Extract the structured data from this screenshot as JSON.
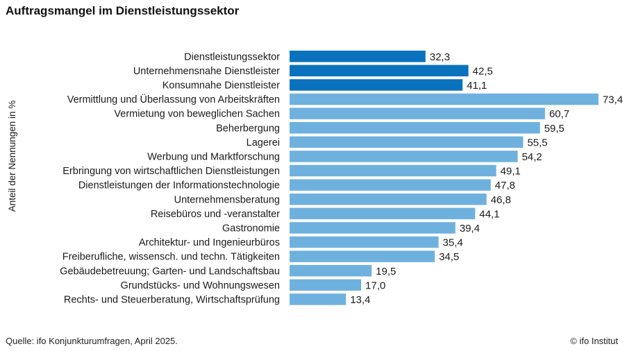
{
  "title": "Auftragsmangel im Dienstleistungssektor",
  "source": "Quelle: ifo Konjunkturumfragen, April 2025.",
  "credit": "© ifo Institut",
  "colors": {
    "dark": "#0a72bd",
    "light": "#6fb1de"
  },
  "chart_data": {
    "type": "bar",
    "orientation": "horizontal",
    "title": "Auftragsmangel im Dienstleistungssektor",
    "ylabel": "Anteil der Nennungen in %",
    "xlim": [
      0,
      80
    ],
    "grid": false,
    "legend": "none",
    "categories": [
      "Dienstleistungssektor",
      "Unternehmensnahe Dienstleister",
      "Konsumnahe Dienstleister",
      "Vermittlung und Überlassung von Arbeitskräften",
      "Vermietung von beweglichen Sachen",
      "Beherbergung",
      "Lagerei",
      "Werbung und Marktforschung",
      "Erbringung von wirtschaftlichen Dienstleistungen",
      "Dienstleistungen der Informationstechnologie",
      "Unternehmensberatung",
      "Reisebüros und -veranstalter",
      "Gastronomie",
      "Architektur- und Ingenieurbüros",
      "Freiberufliche, wissensch. und techn. Tätigkeiten",
      "Gebäudebetreuung; Garten- und Landschaftsbau",
      "Grundstücks- und Wohnungswesen",
      "Rechts- und Steuerberatung, Wirtschaftsprüfung"
    ],
    "values": [
      32.3,
      42.5,
      41.1,
      73.4,
      60.7,
      59.5,
      55.5,
      54.2,
      49.1,
      47.8,
      46.8,
      44.1,
      39.4,
      35.4,
      34.5,
      19.5,
      17.0,
      13.4
    ],
    "value_labels": [
      "32,3",
      "42,5",
      "41,1",
      "73,4",
      "60,7",
      "59,5",
      "55,5",
      "54,2",
      "49,1",
      "47,8",
      "46,8",
      "44,1",
      "39,4",
      "35,4",
      "34,5",
      "19,5",
      "17,0",
      "13,4"
    ],
    "highlight": [
      true,
      true,
      true,
      false,
      false,
      false,
      false,
      false,
      false,
      false,
      false,
      false,
      false,
      false,
      false,
      false,
      false,
      false
    ]
  }
}
